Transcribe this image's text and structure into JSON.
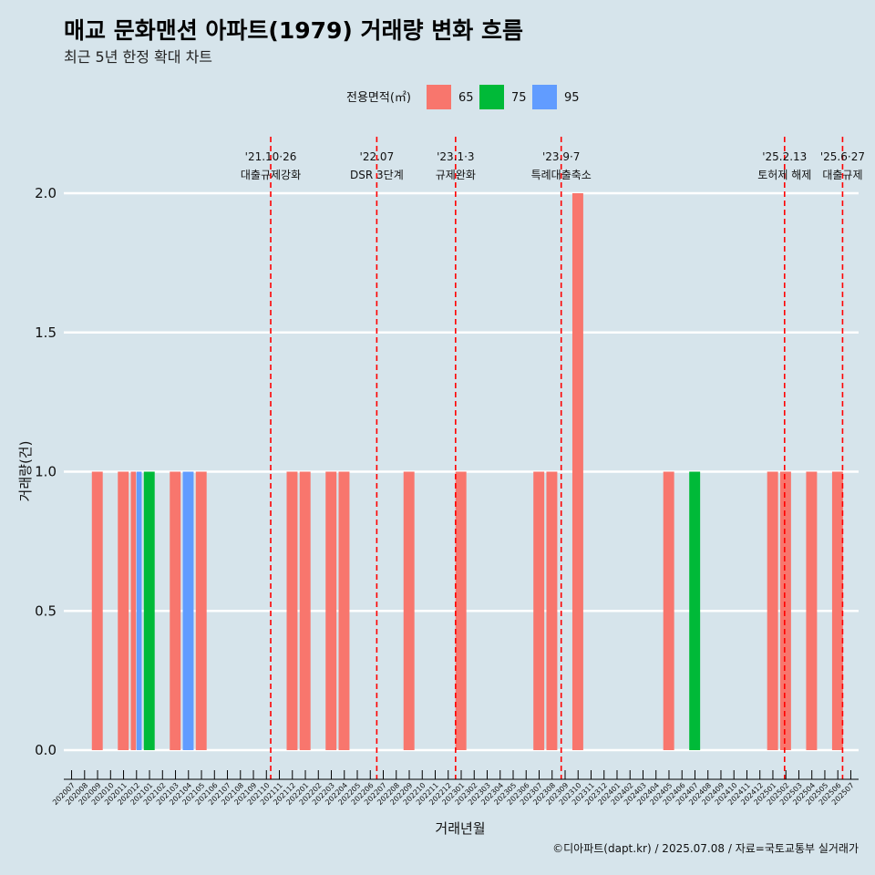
{
  "header": {
    "title": "매교 문화맨션 아파트(1979) 거래량 변화 흐름",
    "subtitle": "최근 5년 한정 확대 차트"
  },
  "caption": "©디아파트(dapt.kr) / 2025.07.08 / 자료=국토교통부 실거래가",
  "colors": {
    "background": "#d6e4eb",
    "event_line": "#ff0000",
    "grid": "#ffffff"
  },
  "chart_data": {
    "type": "bar",
    "xlabel": "거래년월",
    "ylabel": "거래량(건)",
    "ylim": [
      0,
      2
    ],
    "yticks": [
      "0.0",
      "0.5",
      "1.0",
      "1.5",
      "2.0"
    ],
    "grid": true,
    "legend": {
      "title": "전용면적(㎡)",
      "position": "top",
      "items": [
        {
          "label": "65",
          "color": "#f8766d"
        },
        {
          "label": "75",
          "color": "#00ba38"
        },
        {
          "label": "95",
          "color": "#619cff"
        }
      ]
    },
    "categories": [
      "202007",
      "202008",
      "202009",
      "202010",
      "202011",
      "202012",
      "202101",
      "202102",
      "202103",
      "202104",
      "202105",
      "202106",
      "202107",
      "202108",
      "202109",
      "202110",
      "202111",
      "202112",
      "202201",
      "202202",
      "202203",
      "202204",
      "202205",
      "202206",
      "202207",
      "202208",
      "202209",
      "202210",
      "202211",
      "202212",
      "202301",
      "202302",
      "202303",
      "202304",
      "202305",
      "202306",
      "202307",
      "202308",
      "202309",
      "202310",
      "202311",
      "202312",
      "202401",
      "202402",
      "202403",
      "202404",
      "202405",
      "202406",
      "202407",
      "202408",
      "202409",
      "202410",
      "202411",
      "202412",
      "202501",
      "202502",
      "202503",
      "202504",
      "202505",
      "202506",
      "202507"
    ],
    "bars": [
      {
        "x": "202009",
        "area": "65",
        "value": 1
      },
      {
        "x": "202011",
        "area": "65",
        "value": 1
      },
      {
        "x": "202012",
        "area": "65",
        "value": 1
      },
      {
        "x": "202012",
        "area": "95",
        "value": 1
      },
      {
        "x": "202101",
        "area": "75",
        "value": 1
      },
      {
        "x": "202103",
        "area": "65",
        "value": 1
      },
      {
        "x": "202104",
        "area": "95",
        "value": 1
      },
      {
        "x": "202105",
        "area": "65",
        "value": 1
      },
      {
        "x": "202112",
        "area": "65",
        "value": 1
      },
      {
        "x": "202201",
        "area": "65",
        "value": 1
      },
      {
        "x": "202203",
        "area": "65",
        "value": 1
      },
      {
        "x": "202204",
        "area": "65",
        "value": 1
      },
      {
        "x": "202209",
        "area": "65",
        "value": 1
      },
      {
        "x": "202301",
        "area": "65",
        "value": 1
      },
      {
        "x": "202307",
        "area": "65",
        "value": 1
      },
      {
        "x": "202308",
        "area": "65",
        "value": 1
      },
      {
        "x": "202310",
        "area": "65",
        "value": 2
      },
      {
        "x": "202405",
        "area": "65",
        "value": 1
      },
      {
        "x": "202407",
        "area": "75",
        "value": 1
      },
      {
        "x": "202501",
        "area": "65",
        "value": 1
      },
      {
        "x": "202502",
        "area": "65",
        "value": 1
      },
      {
        "x": "202504",
        "area": "65",
        "value": 1
      },
      {
        "x": "202506",
        "area": "65",
        "value": 1
      }
    ],
    "events": [
      {
        "date": "2021-10-26",
        "label1": "'21.10·26",
        "label2": "대출규제강화"
      },
      {
        "date": "2022-07",
        "label1": "'22.07",
        "label2": "DSR 3단계"
      },
      {
        "date": "2023-01-03",
        "label1": "'23.1·3",
        "label2": "규제완화"
      },
      {
        "date": "2023-09-07",
        "label1": "'23.9·7",
        "label2": "특례대출축소"
      },
      {
        "date": "2025-02-13",
        "label1": "'25.2.13",
        "label2": "토허제 해제"
      },
      {
        "date": "2025-06-27",
        "label1": "'25.6·27",
        "label2": "대출규제"
      }
    ]
  }
}
